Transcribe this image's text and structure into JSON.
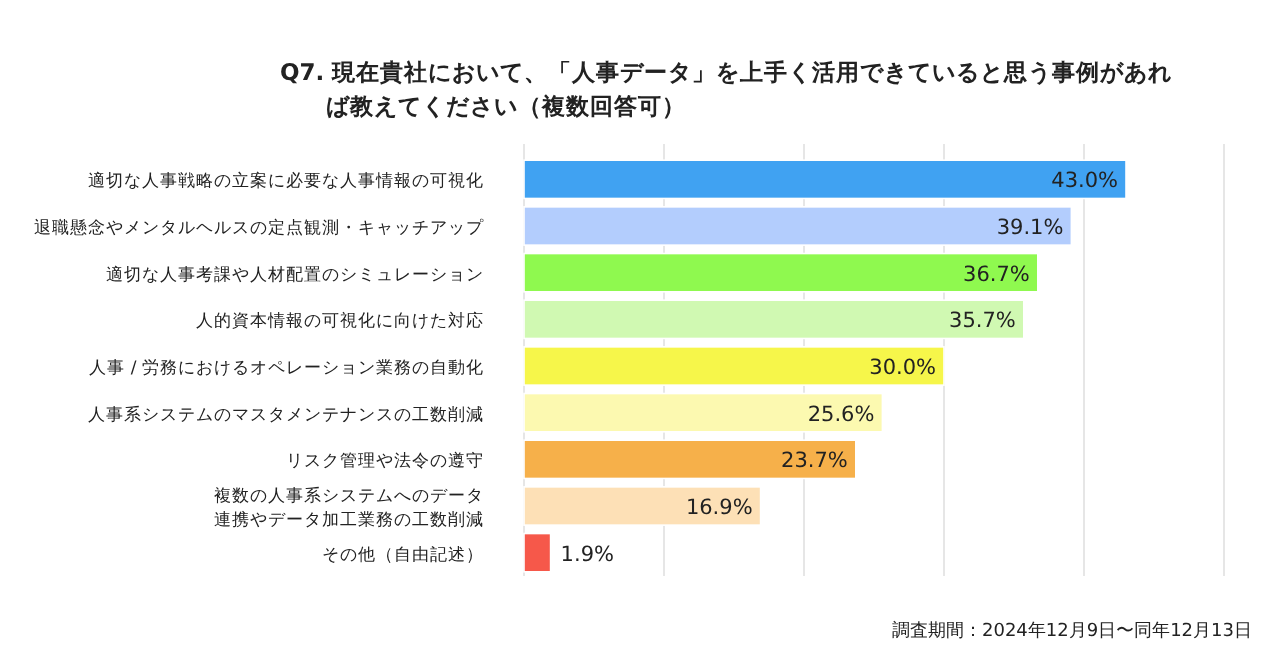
{
  "chart_data": {
    "type": "bar",
    "orientation": "horizontal",
    "title": "Q7. 現在貴社において、「人事データ」を上手く活用できていると思う事例があれば教えてください（複数回答可）",
    "categories": [
      "適切な人事戦略の立案に必要な人事情報の可視化",
      "退職懸念やメンタルヘルスの定点観測・キャッチアップ",
      "適切な人事考課や人材配置のシミュレーション",
      "人的資本情報の可視化に向けた対応",
      "人事 / 労務におけるオペレーション業務の自動化",
      "人事系システムのマスタメンテナンスの工数削減",
      "リスク管理や法令の遵守",
      "複数の人事系システムへのデータ連携やデータ加工業務の工数削減",
      "その他（自由記述）"
    ],
    "values": [
      43.0,
      39.1,
      36.7,
      35.7,
      30.0,
      25.6,
      23.7,
      16.9,
      1.9
    ],
    "colors": [
      "#40a2f2",
      "#b3cdfd",
      "#8ff94f",
      "#d0f9b2",
      "#f6f64a",
      "#fcf9b0",
      "#f6b04a",
      "#fde0b6",
      "#f6584a"
    ],
    "value_labels": [
      "43.0%",
      "39.1%",
      "36.7%",
      "35.7%",
      "30.0%",
      "25.6%",
      "23.7%",
      "16.9%",
      "1.9%"
    ],
    "xlim": [
      0,
      50
    ],
    "xticks": [
      {
        "value": 0,
        "label": null
      },
      {
        "value": 10,
        "label": null
      },
      {
        "value": 20,
        "label": null
      },
      {
        "value": 30,
        "label": null
      },
      {
        "value": 40,
        "label": null
      },
      {
        "value": 50,
        "label": null
      }
    ],
    "grid": "x",
    "tick_labels": "y",
    "annotations": [
      "調査期間：2024年12月9日〜同年12月13日"
    ]
  }
}
